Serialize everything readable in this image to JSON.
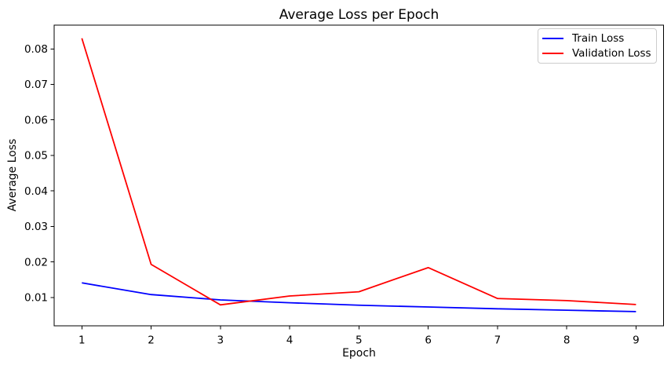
{
  "chart_data": {
    "type": "line",
    "title": "Average Loss per Epoch",
    "xlabel": "Epoch",
    "ylabel": "Average Loss",
    "x": [
      1,
      2,
      3,
      4,
      5,
      6,
      7,
      8,
      9
    ],
    "series": [
      {
        "name": "Train Loss",
        "color": "#0000ff",
        "values": [
          0.0141,
          0.0108,
          0.0093,
          0.0085,
          0.0078,
          0.0073,
          0.0068,
          0.0064,
          0.006
        ]
      },
      {
        "name": "Validation Loss",
        "color": "#ff0000",
        "values": [
          0.083,
          0.0193,
          0.0079,
          0.0104,
          0.0116,
          0.0184,
          0.0097,
          0.0091,
          0.008
        ]
      }
    ],
    "xlim": [
      0.6,
      9.4
    ],
    "ylim": [
      0.002,
      0.0867
    ],
    "x_ticks": [
      1,
      2,
      3,
      4,
      5,
      6,
      7,
      8,
      9
    ],
    "x_tick_labels": [
      "1",
      "2",
      "3",
      "4",
      "5",
      "6",
      "7",
      "8",
      "9"
    ],
    "y_ticks": [
      0.01,
      0.02,
      0.03,
      0.04,
      0.05,
      0.06,
      0.07,
      0.08
    ],
    "y_tick_labels": [
      "0.01",
      "0.02",
      "0.03",
      "0.04",
      "0.05",
      "0.06",
      "0.07",
      "0.08"
    ],
    "grid": false,
    "legend_position": "upper right",
    "colors": {
      "axes": "#000000",
      "text": "#000000",
      "legend_border": "#cccccc",
      "background": "#ffffff"
    }
  }
}
